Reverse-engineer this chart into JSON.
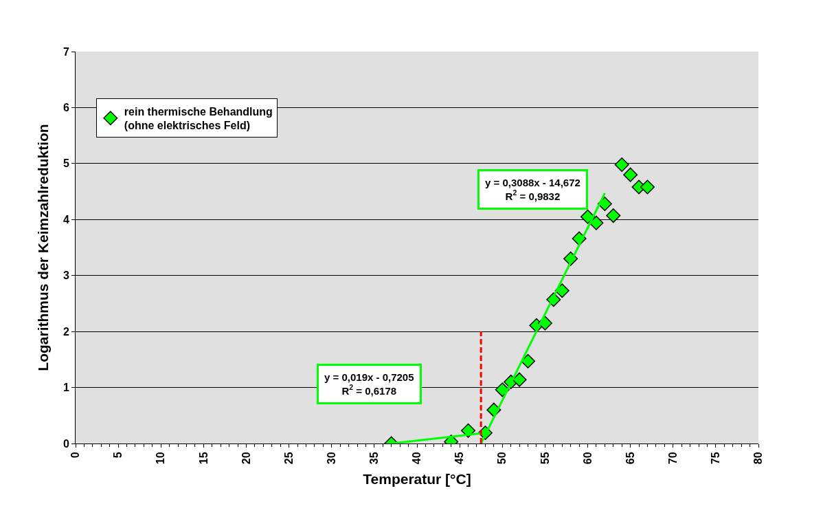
{
  "chart_data": {
    "type": "scatter",
    "xlabel": "Temperatur [°C]",
    "ylabel": "Logarithmus der Keimzahlreduktion",
    "xlim": [
      0,
      80
    ],
    "xticks": [
      0,
      5,
      10,
      15,
      20,
      25,
      30,
      35,
      40,
      45,
      50,
      55,
      60,
      65,
      70,
      75,
      80
    ],
    "ylim": [
      0,
      7
    ],
    "yticks": [
      0,
      1,
      2,
      3,
      4,
      5,
      6,
      7
    ],
    "grid": "y",
    "legend": "top left",
    "marker": "diamond",
    "series": [
      {
        "name": "rein thermische Behandlung\n(ohne elektrisches Feld)",
        "color": "#00ff00",
        "x": [
          37,
          44,
          46,
          48,
          49,
          50,
          51,
          52,
          53,
          54,
          55,
          56,
          57,
          58,
          59,
          60,
          61,
          62,
          63,
          64,
          65,
          66,
          67
        ],
        "values": [
          0,
          0.03,
          0.23,
          0.19,
          0.6,
          0.96,
          1.1,
          1.14,
          1.47,
          2.11,
          2.15,
          2.57,
          2.73,
          3.3,
          3.66,
          4.05,
          3.94,
          4.28,
          4.07,
          4.98,
          4.8,
          4.58,
          4.58
        ]
      },
      {
        "color": "#00ff00",
        "type": "line",
        "marker": "none",
        "x": [
          37,
          47.5
        ],
        "values": [
          0,
          0.18
        ]
      },
      {
        "color": "#00ff00",
        "type": "line",
        "marker": "none",
        "x": [
          47.5,
          62
        ],
        "values": [
          0,
          4.47
        ]
      },
      {
        "color": "#ff0000",
        "type": "line",
        "marker": "none",
        "line_style": "dashed",
        "x": [
          47.5,
          47.5
        ],
        "values": [
          0,
          2
        ]
      }
    ],
    "annotations": [
      "y = 0,019x - 0,7205\nR$^{2}$ = 0,6178",
      "y = 0,3088x - 14,672\nR$^{2}$ = 0,9832"
    ]
  }
}
